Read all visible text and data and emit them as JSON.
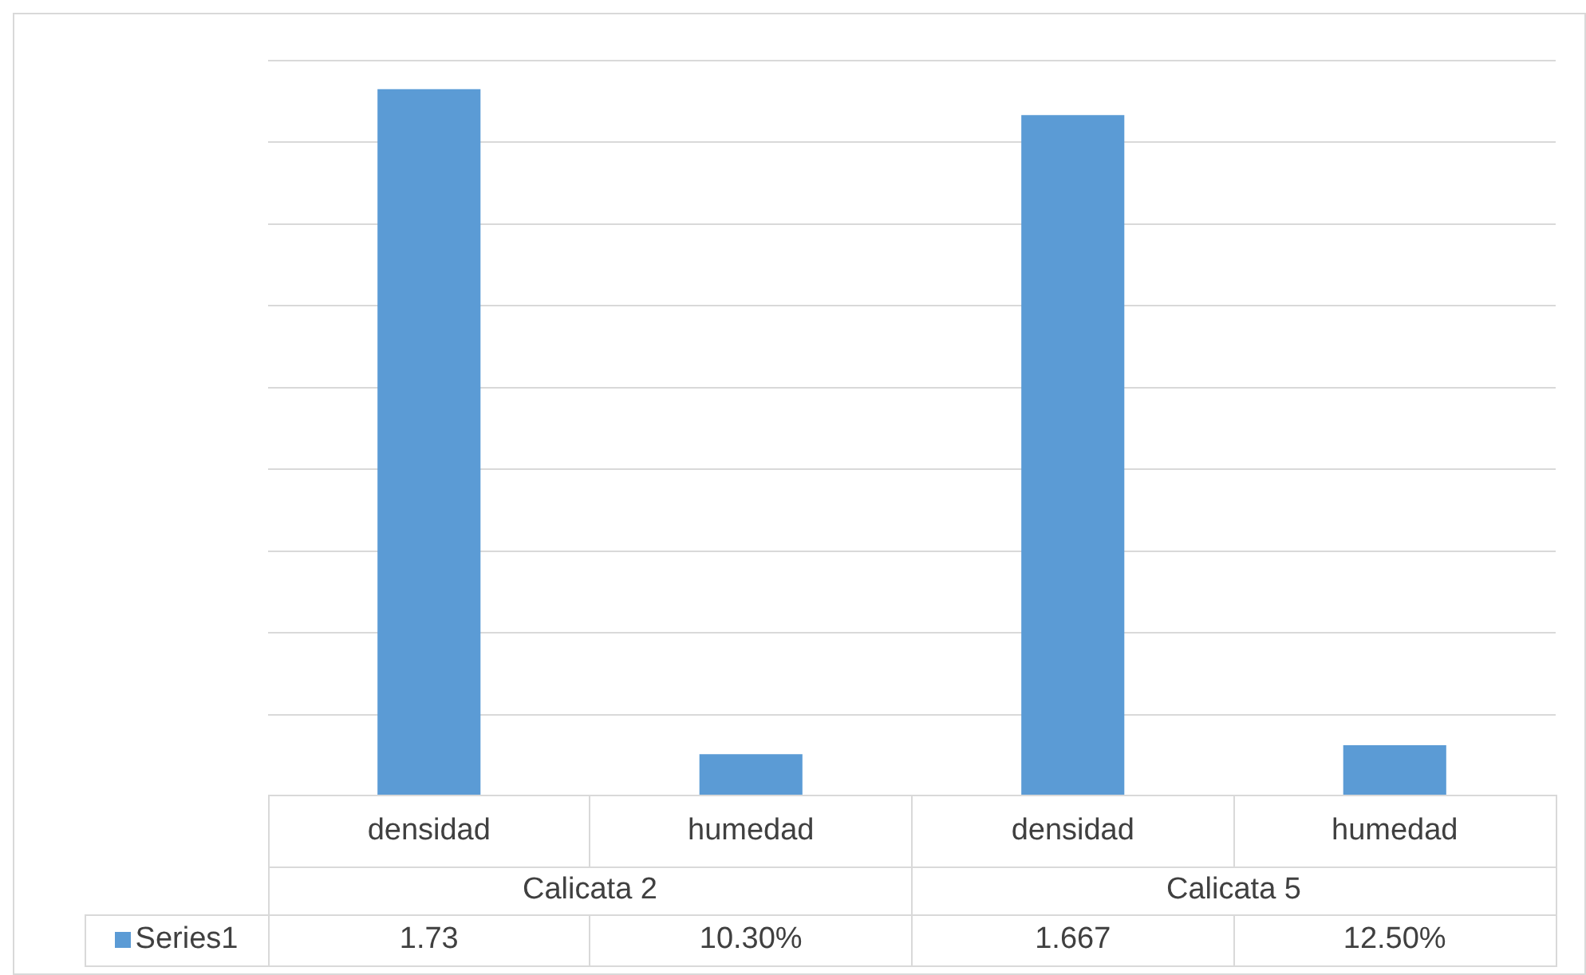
{
  "chart_data": {
    "type": "bar",
    "categories": [
      "densidad",
      "humedad",
      "densidad",
      "humedad"
    ],
    "annotations": [
      "Calicata 2",
      "Calicata 5"
    ],
    "series": [
      {
        "name": "Series1",
        "color": "#5b9bd5",
        "values": [
          1.73,
          0.103,
          1.667,
          0.125
        ],
        "value_labels": [
          "1.73",
          "10.30%",
          "1.667",
          "12.50%"
        ]
      }
    ],
    "tick_labels": "x",
    "grid": "y",
    "legend": "bottom"
  }
}
